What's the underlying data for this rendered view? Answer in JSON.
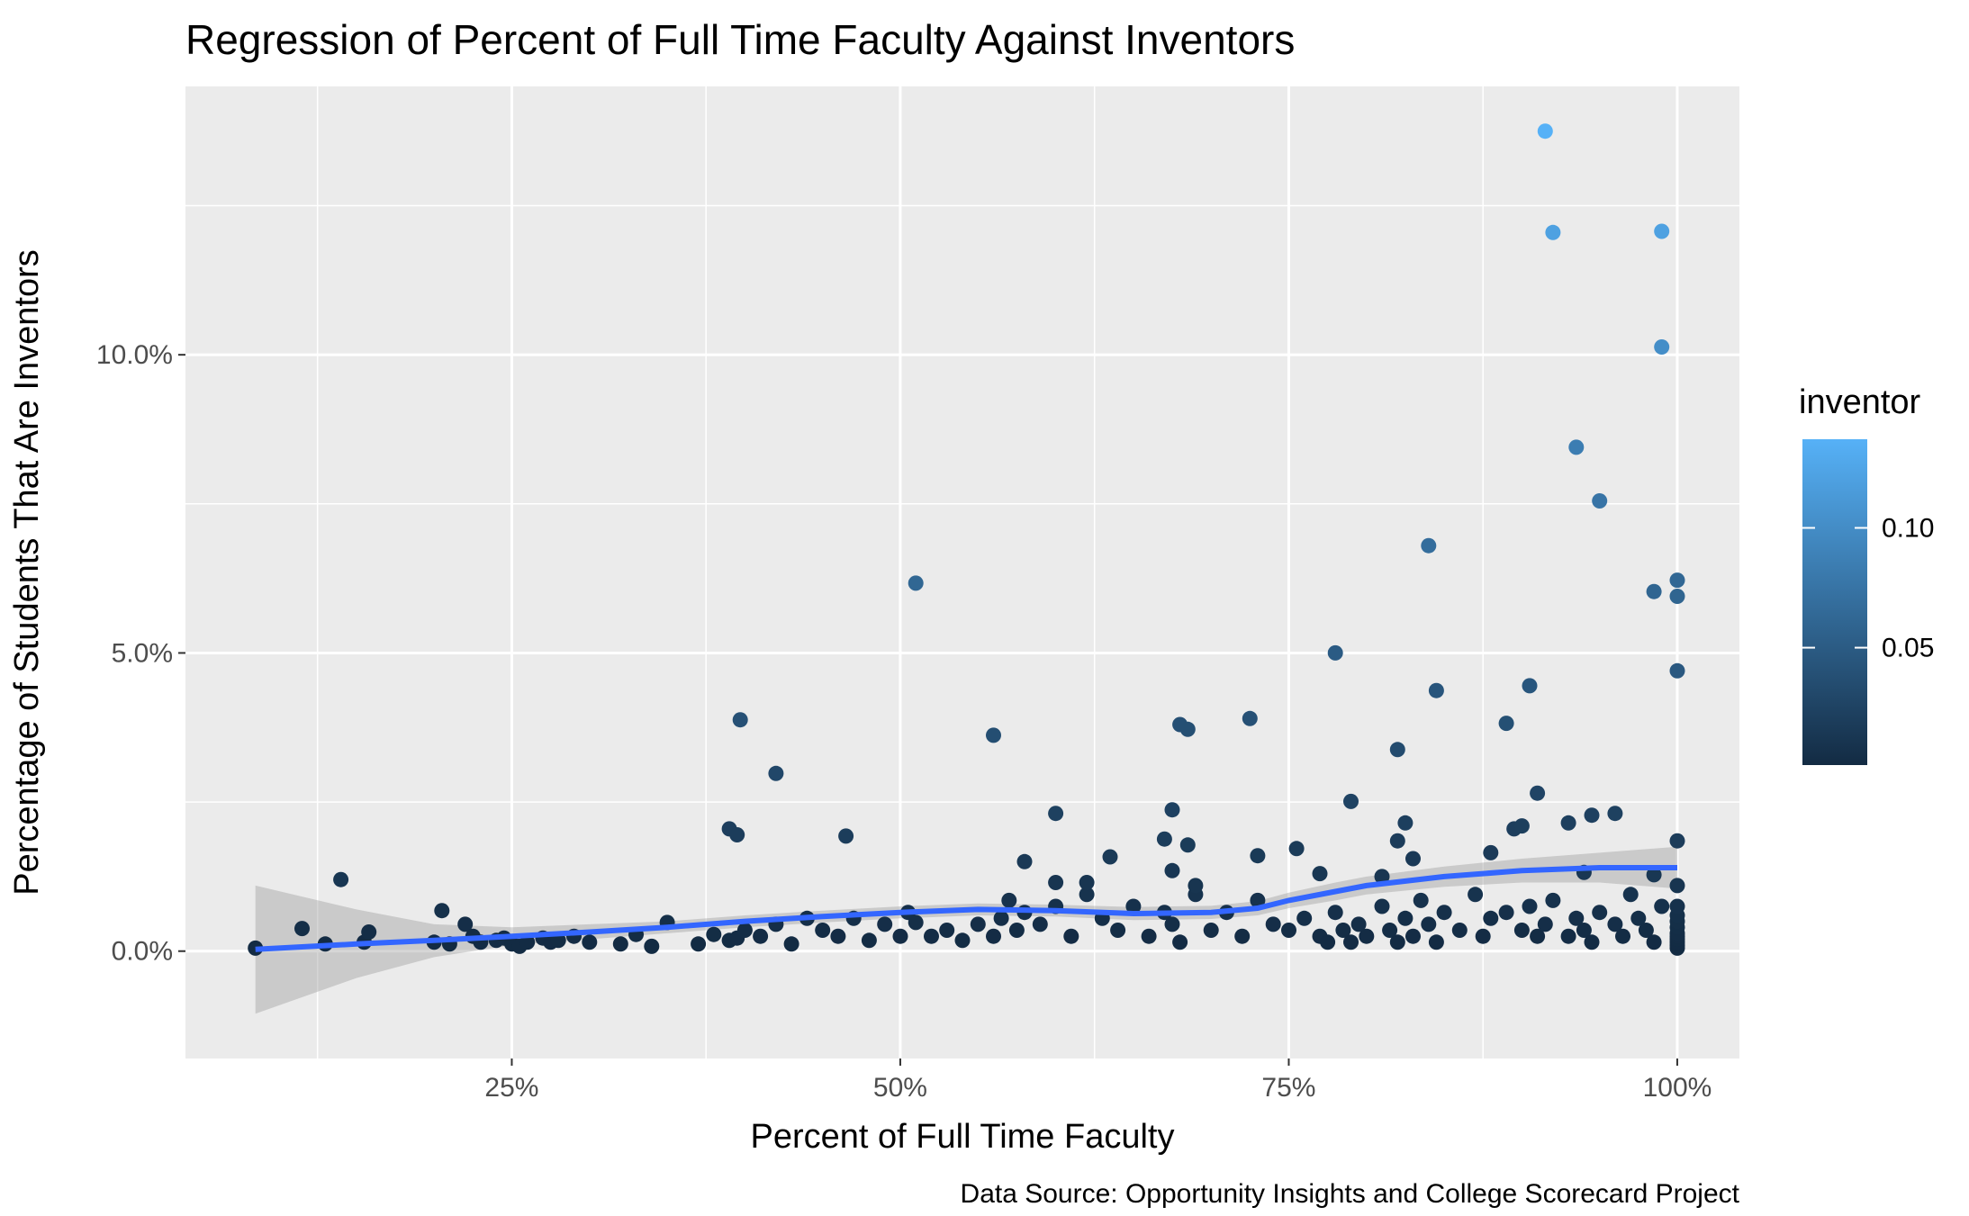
{
  "chart_data": {
    "type": "scatter",
    "title": "Regression of Percent of Full Time Faculty Against Inventors",
    "xlabel": "Percent of Full Time Faculty",
    "ylabel": "Percentage of Students That Are Inventors",
    "caption": "Data Source: Opportunity Insights and College Scorecard Project",
    "xlim": [
      0.04,
      1.04
    ],
    "ylim": [
      -0.018,
      0.145
    ],
    "x_ticks": [
      0.25,
      0.5,
      0.75,
      1.0
    ],
    "x_tick_labels": [
      "25%",
      "50%",
      "75%",
      "100%"
    ],
    "y_ticks": [
      0.0,
      0.05,
      0.1
    ],
    "y_tick_labels": [
      "0.0%",
      "5.0%",
      "10.0%"
    ],
    "grid": true,
    "legend": {
      "title": "inventor",
      "position": "right",
      "type": "colorbar",
      "range": [
        0.001,
        0.137
      ],
      "ticks": [
        0.05,
        0.1
      ],
      "tick_labels": [
        "0.05",
        "0.10"
      ],
      "low_color": "#132B43",
      "high_color": "#56B1F7"
    },
    "smooth": {
      "color": "#3366FF",
      "band_color": "#999999",
      "x": [
        0.085,
        0.15,
        0.2,
        0.25,
        0.3,
        0.35,
        0.4,
        0.45,
        0.5,
        0.55,
        0.6,
        0.65,
        0.7,
        0.73,
        0.75,
        0.78,
        0.8,
        0.85,
        0.9,
        0.95,
        1.0
      ],
      "y": [
        0.0003,
        0.0012,
        0.0018,
        0.0025,
        0.0032,
        0.004,
        0.005,
        0.0058,
        0.0065,
        0.007,
        0.0068,
        0.0063,
        0.0065,
        0.0072,
        0.0085,
        0.01,
        0.011,
        0.0125,
        0.0135,
        0.014,
        0.014
      ],
      "lower": [
        -0.0105,
        -0.0045,
        -0.001,
        0.001,
        0.002,
        0.003,
        0.004,
        0.0048,
        0.0055,
        0.006,
        0.0058,
        0.0052,
        0.0054,
        0.006,
        0.0072,
        0.0085,
        0.0095,
        0.0108,
        0.0115,
        0.0115,
        0.0105
      ],
      "upper": [
        0.011,
        0.007,
        0.0045,
        0.004,
        0.0045,
        0.005,
        0.006,
        0.0068,
        0.0075,
        0.008,
        0.0078,
        0.0074,
        0.0076,
        0.0084,
        0.0098,
        0.0115,
        0.0125,
        0.0142,
        0.0155,
        0.0165,
        0.0175
      ]
    },
    "points": {
      "x": [
        0.085,
        0.115,
        0.13,
        0.14,
        0.155,
        0.158,
        0.2,
        0.205,
        0.21,
        0.22,
        0.225,
        0.23,
        0.24,
        0.245,
        0.25,
        0.255,
        0.26,
        0.27,
        0.275,
        0.28,
        0.29,
        0.3,
        0.32,
        0.33,
        0.34,
        0.35,
        0.37,
        0.38,
        0.39,
        0.395,
        0.4,
        0.41,
        0.42,
        0.43,
        0.44,
        0.45,
        0.46,
        0.47,
        0.48,
        0.49,
        0.5,
        0.505,
        0.51,
        0.52,
        0.53,
        0.54,
        0.55,
        0.56,
        0.565,
        0.57,
        0.575,
        0.58,
        0.59,
        0.6,
        0.61,
        0.62,
        0.63,
        0.64,
        0.65,
        0.66,
        0.67,
        0.675,
        0.68,
        0.69,
        0.7,
        0.71,
        0.72,
        0.73,
        0.74,
        0.75,
        0.76,
        0.77,
        0.775,
        0.78,
        0.785,
        0.79,
        0.795,
        0.8,
        0.81,
        0.815,
        0.82,
        0.825,
        0.83,
        0.835,
        0.84,
        0.845,
        0.85,
        0.86,
        0.87,
        0.875,
        0.88,
        0.89,
        0.9,
        0.905,
        0.91,
        0.915,
        0.92,
        0.93,
        0.935,
        0.94,
        0.945,
        0.95,
        0.96,
        0.965,
        0.97,
        0.975,
        0.98,
        0.985,
        0.99,
        1.0,
        1.0,
        1.0,
        1.0,
        1.0,
        1.0,
        1.0,
        1.0,
        1.0,
        1.0,
        1.0,
        0.39,
        0.395,
        0.397,
        0.42,
        0.465,
        0.51,
        0.56,
        0.6,
        0.675,
        0.68,
        0.685,
        0.725,
        0.78,
        0.79,
        0.82,
        0.84,
        0.845,
        0.89,
        0.905,
        0.91,
        0.93,
        0.935,
        0.945,
        0.96,
        0.985,
        0.99,
        1.0,
        1.0,
        1.0,
        1.0,
        0.915,
        0.92,
        0.99,
        0.82,
        0.825,
        0.83,
        0.88,
        0.895,
        0.9,
        0.94,
        0.95,
        0.985,
        0.675,
        0.685,
        0.635,
        0.58,
        0.6,
        0.62,
        0.67,
        0.69,
        0.73,
        0.755,
        0.77,
        0.81
      ],
      "y": [
        0.0005,
        0.0038,
        0.0012,
        0.012,
        0.0015,
        0.0032,
        0.0015,
        0.0068,
        0.0012,
        0.0045,
        0.0025,
        0.0015,
        0.0018,
        0.0022,
        0.0012,
        0.0008,
        0.0015,
        0.0022,
        0.0015,
        0.0018,
        0.0025,
        0.0015,
        0.0012,
        0.0028,
        0.0008,
        0.0048,
        0.0012,
        0.0028,
        0.0018,
        0.0022,
        0.0035,
        0.0025,
        0.0045,
        0.0012,
        0.0055,
        0.0035,
        0.0025,
        0.0055,
        0.0018,
        0.0045,
        0.0025,
        0.0065,
        0.0048,
        0.0025,
        0.0035,
        0.0018,
        0.0045,
        0.0025,
        0.0055,
        0.0085,
        0.0035,
        0.0065,
        0.0045,
        0.0075,
        0.0025,
        0.0095,
        0.0055,
        0.0035,
        0.0075,
        0.0025,
        0.0065,
        0.0045,
        0.0015,
        0.0095,
        0.0035,
        0.0065,
        0.0025,
        0.0085,
        0.0045,
        0.0035,
        0.0055,
        0.0025,
        0.0015,
        0.0065,
        0.0035,
        0.0015,
        0.0045,
        0.0025,
        0.0075,
        0.0035,
        0.0015,
        0.0055,
        0.0025,
        0.0085,
        0.0045,
        0.0015,
        0.0065,
        0.0035,
        0.0095,
        0.0025,
        0.0055,
        0.0065,
        0.0035,
        0.0075,
        0.0025,
        0.0045,
        0.0085,
        0.0025,
        0.0055,
        0.0035,
        0.0015,
        0.0065,
        0.0045,
        0.0025,
        0.0095,
        0.0055,
        0.0035,
        0.0015,
        0.0075,
        0.0005,
        0.001,
        0.0015,
        0.002,
        0.0025,
        0.003,
        0.004,
        0.005,
        0.006,
        0.0075,
        0.011,
        0.0205,
        0.0195,
        0.0388,
        0.0298,
        0.0193,
        0.0617,
        0.0362,
        0.0231,
        0.0237,
        0.038,
        0.0372,
        0.039,
        0.05,
        0.0251,
        0.0338,
        0.068,
        0.0437,
        0.0382,
        0.0445,
        0.0265,
        0.0215,
        0.0845,
        0.0228,
        0.0231,
        0.0603,
        0.1207,
        0.0595,
        0.0622,
        0.047,
        0.0185,
        0.1375,
        0.1205,
        0.1013,
        0.0185,
        0.0215,
        0.0155,
        0.0165,
        0.0205,
        0.021,
        0.0132,
        0.0755,
        0.0128,
        0.0135,
        0.0178,
        0.0158,
        0.015,
        0.0115,
        0.0115,
        0.0188,
        0.011,
        0.016,
        0.0172,
        0.013,
        0.0125
      ]
    }
  }
}
